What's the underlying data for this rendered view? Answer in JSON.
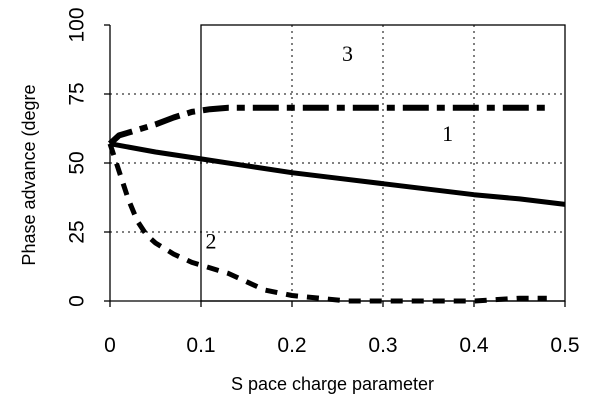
{
  "chart_data": {
    "type": "line",
    "xlabel": "S pace charge parameter",
    "ylabel": "Phase advance (degre",
    "xlim": [
      0,
      0.5
    ],
    "ylim": [
      0,
      100
    ],
    "x_ticks": [
      "0",
      "0.1",
      "0.2",
      "0.3",
      "0.4",
      "0.5"
    ],
    "y_ticks": [
      "0",
      "25",
      "50",
      "75",
      "100"
    ],
    "x_tick_values": [
      0,
      0.1,
      0.2,
      0.3,
      0.4,
      0.5
    ],
    "y_tick_values": [
      0,
      25,
      50,
      75,
      100
    ],
    "grid": true,
    "series": [
      {
        "label": "1",
        "style": "solid",
        "x": [
          0,
          0.05,
          0.1,
          0.15,
          0.2,
          0.25,
          0.3,
          0.35,
          0.4,
          0.45,
          0.5
        ],
        "y": [
          57,
          54,
          51.5,
          49,
          46.5,
          44.5,
          42.5,
          40.5,
          38.5,
          37,
          35
        ]
      },
      {
        "label": "2",
        "style": "dashed",
        "x": [
          0,
          0.01,
          0.02,
          0.03,
          0.04,
          0.05,
          0.07,
          0.09,
          0.11,
          0.13,
          0.15,
          0.17,
          0.2,
          0.23,
          0.26,
          0.3,
          0.35,
          0.4,
          0.45,
          0.48
        ],
        "y": [
          57,
          47,
          37,
          29,
          24,
          21,
          17,
          14,
          12,
          10,
          7,
          4,
          2,
          1,
          0,
          0,
          0,
          0,
          1,
          1
        ]
      },
      {
        "label": "3",
        "style": "dash-dot",
        "x": [
          0,
          0.01,
          0.03,
          0.05,
          0.07,
          0.09,
          0.11,
          0.13,
          0.15,
          0.2,
          0.25,
          0.3,
          0.35,
          0.4,
          0.45,
          0.48
        ],
        "y": [
          57,
          60,
          62,
          64,
          66.5,
          68.5,
          69.5,
          70,
          70,
          70,
          70,
          70,
          70,
          70,
          70,
          70
        ]
      }
    ],
    "curve_labels": [
      {
        "text": "1",
        "x": 0.365,
        "y": 58
      },
      {
        "text": "2",
        "x": 0.105,
        "y": 19
      },
      {
        "text": "3",
        "x": 0.255,
        "y": 87
      }
    ]
  }
}
